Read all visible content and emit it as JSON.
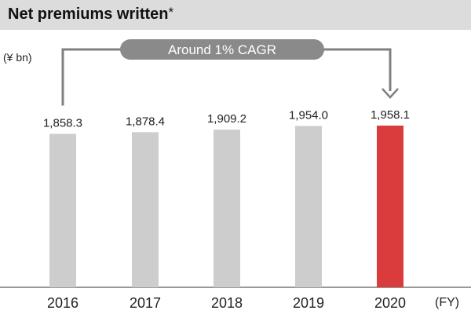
{
  "header": {
    "title": "Net premiums written",
    "title_mark": "*"
  },
  "chart_data": {
    "type": "bar",
    "title": "Net premiums written*",
    "unit_label": "(¥ bn)",
    "x_unit_label": "(FY)",
    "categories": [
      "2016",
      "2017",
      "2018",
      "2019",
      "2020"
    ],
    "values": [
      1858.3,
      1878.4,
      1909.2,
      1954.0,
      1958.1
    ],
    "value_labels": [
      "1,858.3",
      "1,878.4",
      "1,909.2",
      "1,954.0",
      "1,958.1"
    ],
    "colors": {
      "bar": "#cdcdcd",
      "highlight_bar": "#da3c3e",
      "header_bg": "#dcdcdc",
      "annotation_line": "#808080",
      "annotation_fill": "#8a8a8a",
      "annotation_text": "#ffffff"
    },
    "highlight_category": "2020",
    "annotation": {
      "text": "Around 1% CAGR",
      "from_category": "2016",
      "to_category": "2020"
    },
    "legend": "none",
    "grid": false
  }
}
